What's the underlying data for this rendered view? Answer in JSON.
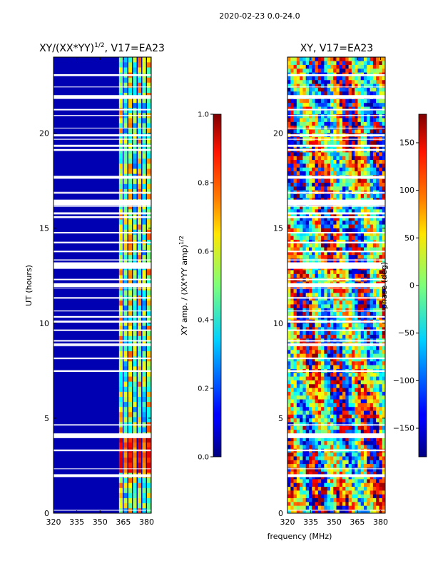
{
  "suptitle": "2020-02-23 0.0-24.0",
  "chart_data": [
    {
      "type": "heatmap",
      "title": "XY/(XX*YY)",
      "title_sup": "1/2",
      "title_suffix": ", V17=EA23",
      "xlabel": "",
      "ylabel": "UT (hours)",
      "xlim": [
        320,
        383
      ],
      "ylim": [
        0,
        24
      ],
      "xticks": [
        320,
        335,
        350,
        365,
        380
      ],
      "yticks": [
        0,
        5,
        10,
        15,
        20
      ],
      "colorbar": {
        "label": "XY amp. / (XX*YY amp)",
        "label_sup": "1/2",
        "range": [
          0.0,
          1.0
        ],
        "ticks": [
          "0.0",
          "0.2",
          "0.4",
          "0.6",
          "0.8",
          "1.0"
        ]
      },
      "description_values": {
        "low_band_mhz": [
          320,
          362
        ],
        "low_band_value": 0.05,
        "high_band_mhz": [
          362,
          383
        ],
        "high_band_value_range": [
          0.3,
          0.9
        ]
      }
    },
    {
      "type": "heatmap",
      "title": "XY, V17=EA23",
      "xlabel": "frequency (MHz)",
      "ylabel": "",
      "xlim": [
        320,
        383
      ],
      "ylim": [
        0,
        24
      ],
      "xticks": [
        320,
        335,
        350,
        365,
        380
      ],
      "yticks": [
        0,
        5,
        10,
        15,
        20
      ],
      "colorbar": {
        "label": "phase (deg)",
        "range": [
          -180,
          180
        ],
        "ticks": [
          "150",
          "100",
          "50",
          "0",
          "−50",
          "−100",
          "−150"
        ]
      }
    }
  ]
}
